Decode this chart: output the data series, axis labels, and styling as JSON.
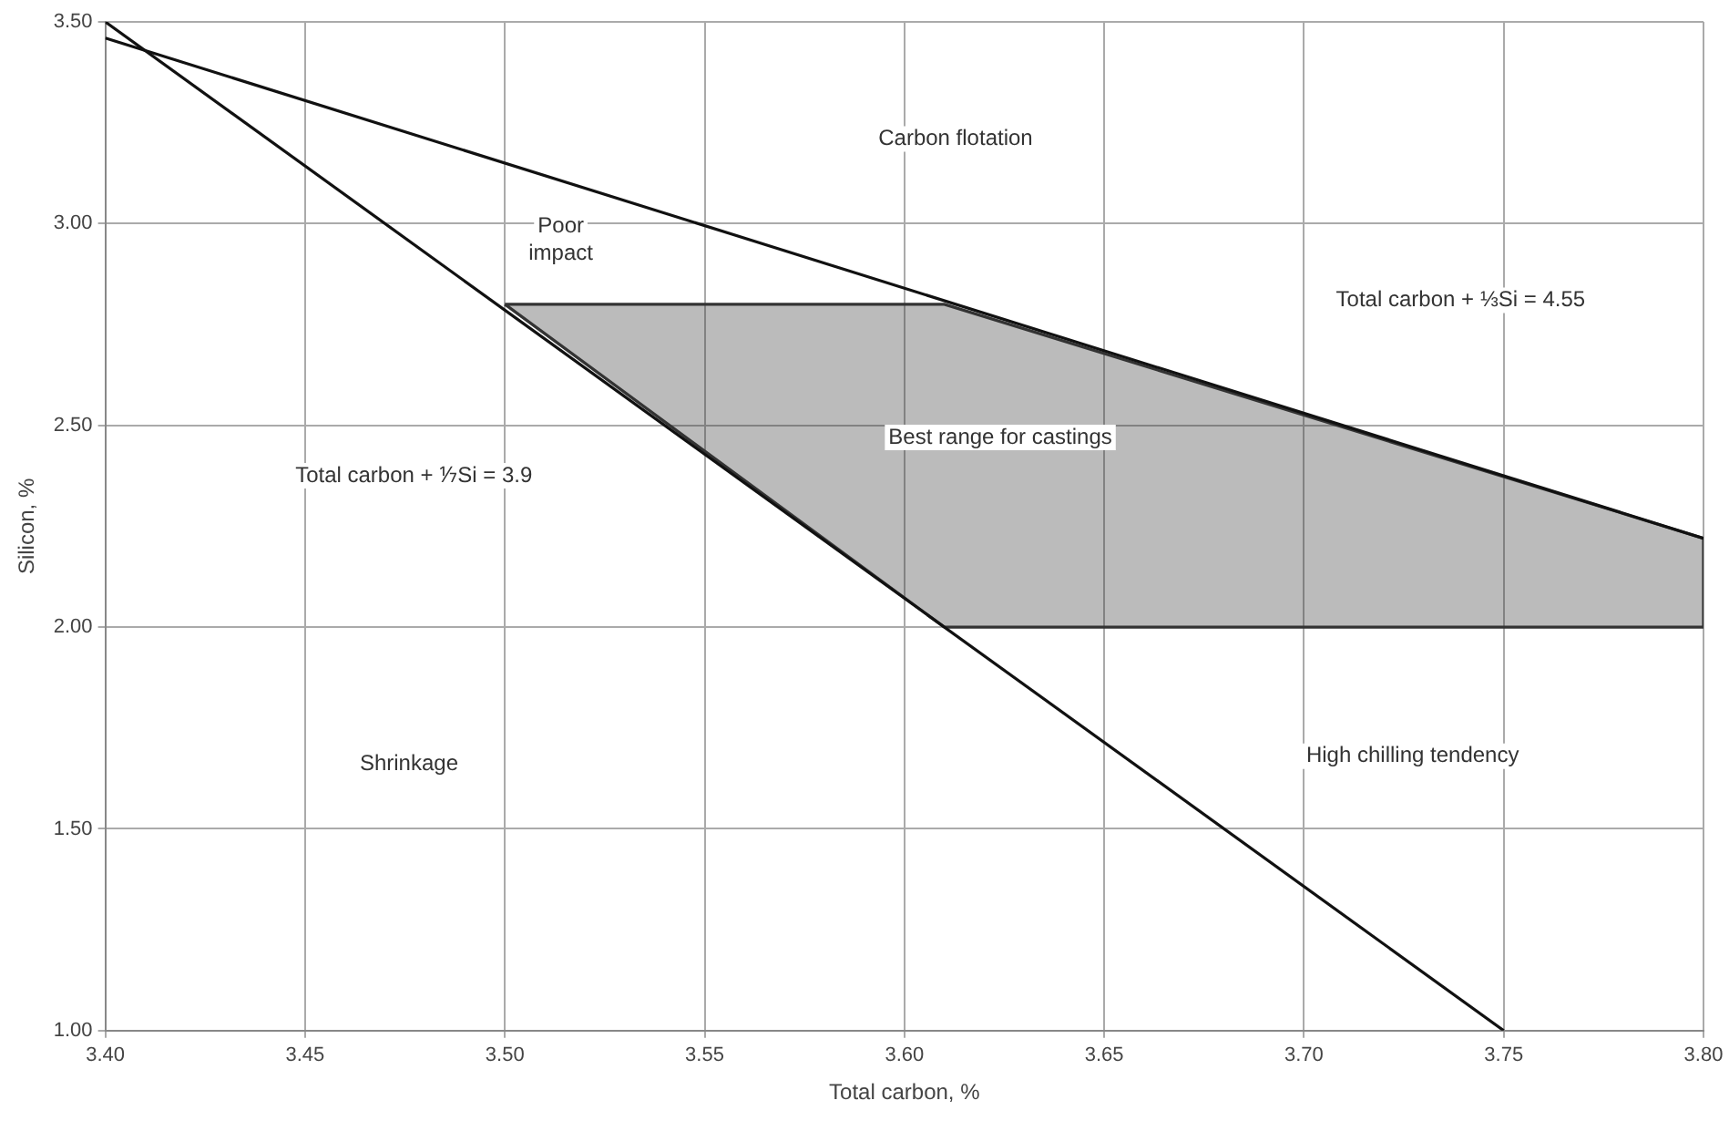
{
  "chart_data": {
    "type": "line",
    "xlabel": "Total carbon, %",
    "ylabel": "Silicon, %",
    "xlim": [
      3.4,
      3.8
    ],
    "xticks": [
      {
        "value": 3.4,
        "label": "3.40"
      },
      {
        "value": 3.45,
        "label": "3.45"
      },
      {
        "value": 3.5,
        "label": "3.50"
      },
      {
        "value": 3.55,
        "label": "3.55"
      },
      {
        "value": 3.6,
        "label": "3.60"
      },
      {
        "value": 3.65,
        "label": "3.65"
      },
      {
        "value": 3.7,
        "label": "3.70"
      },
      {
        "value": 3.75,
        "label": "3.75"
      },
      {
        "value": 3.8,
        "label": "3.80"
      }
    ],
    "ylim": [
      1,
      3.5
    ],
    "yticks": [
      {
        "value": 1,
        "label": "1.00"
      },
      {
        "value": 1.5,
        "label": "1.50"
      },
      {
        "value": 2,
        "label": "2.00"
      },
      {
        "value": 2.5,
        "label": "2.50"
      },
      {
        "value": 3,
        "label": "3.00"
      },
      {
        "value": 3.5,
        "label": "3.50"
      }
    ],
    "grid": true,
    "legend": false,
    "marker": "none",
    "series": [
      {
        "type": "line",
        "color": "#111111",
        "x": [
          3.4,
          3.75
        ],
        "values": [
          3.5,
          1.0
        ]
      },
      {
        "type": "line",
        "color": "#111111",
        "x": [
          3.4,
          3.8
        ],
        "values": [
          3.46,
          2.22
        ]
      },
      {
        "type": "area",
        "color": "#333333",
        "x": [
          3.5,
          3.61,
          3.8,
          3.8,
          3.61,
          3.5
        ],
        "values": [
          2.8,
          2.8,
          2.22,
          2.0,
          2.0,
          2.8
        ]
      }
    ],
    "annotations": [
      "Carbon flotation",
      "Poor\nimpact",
      "Total carbon + ⅓Si = 4.55",
      "Best range for castings",
      "Total carbon + ⅐Si = 3.9",
      "Shrinkage",
      "High chilling tendency"
    ]
  }
}
